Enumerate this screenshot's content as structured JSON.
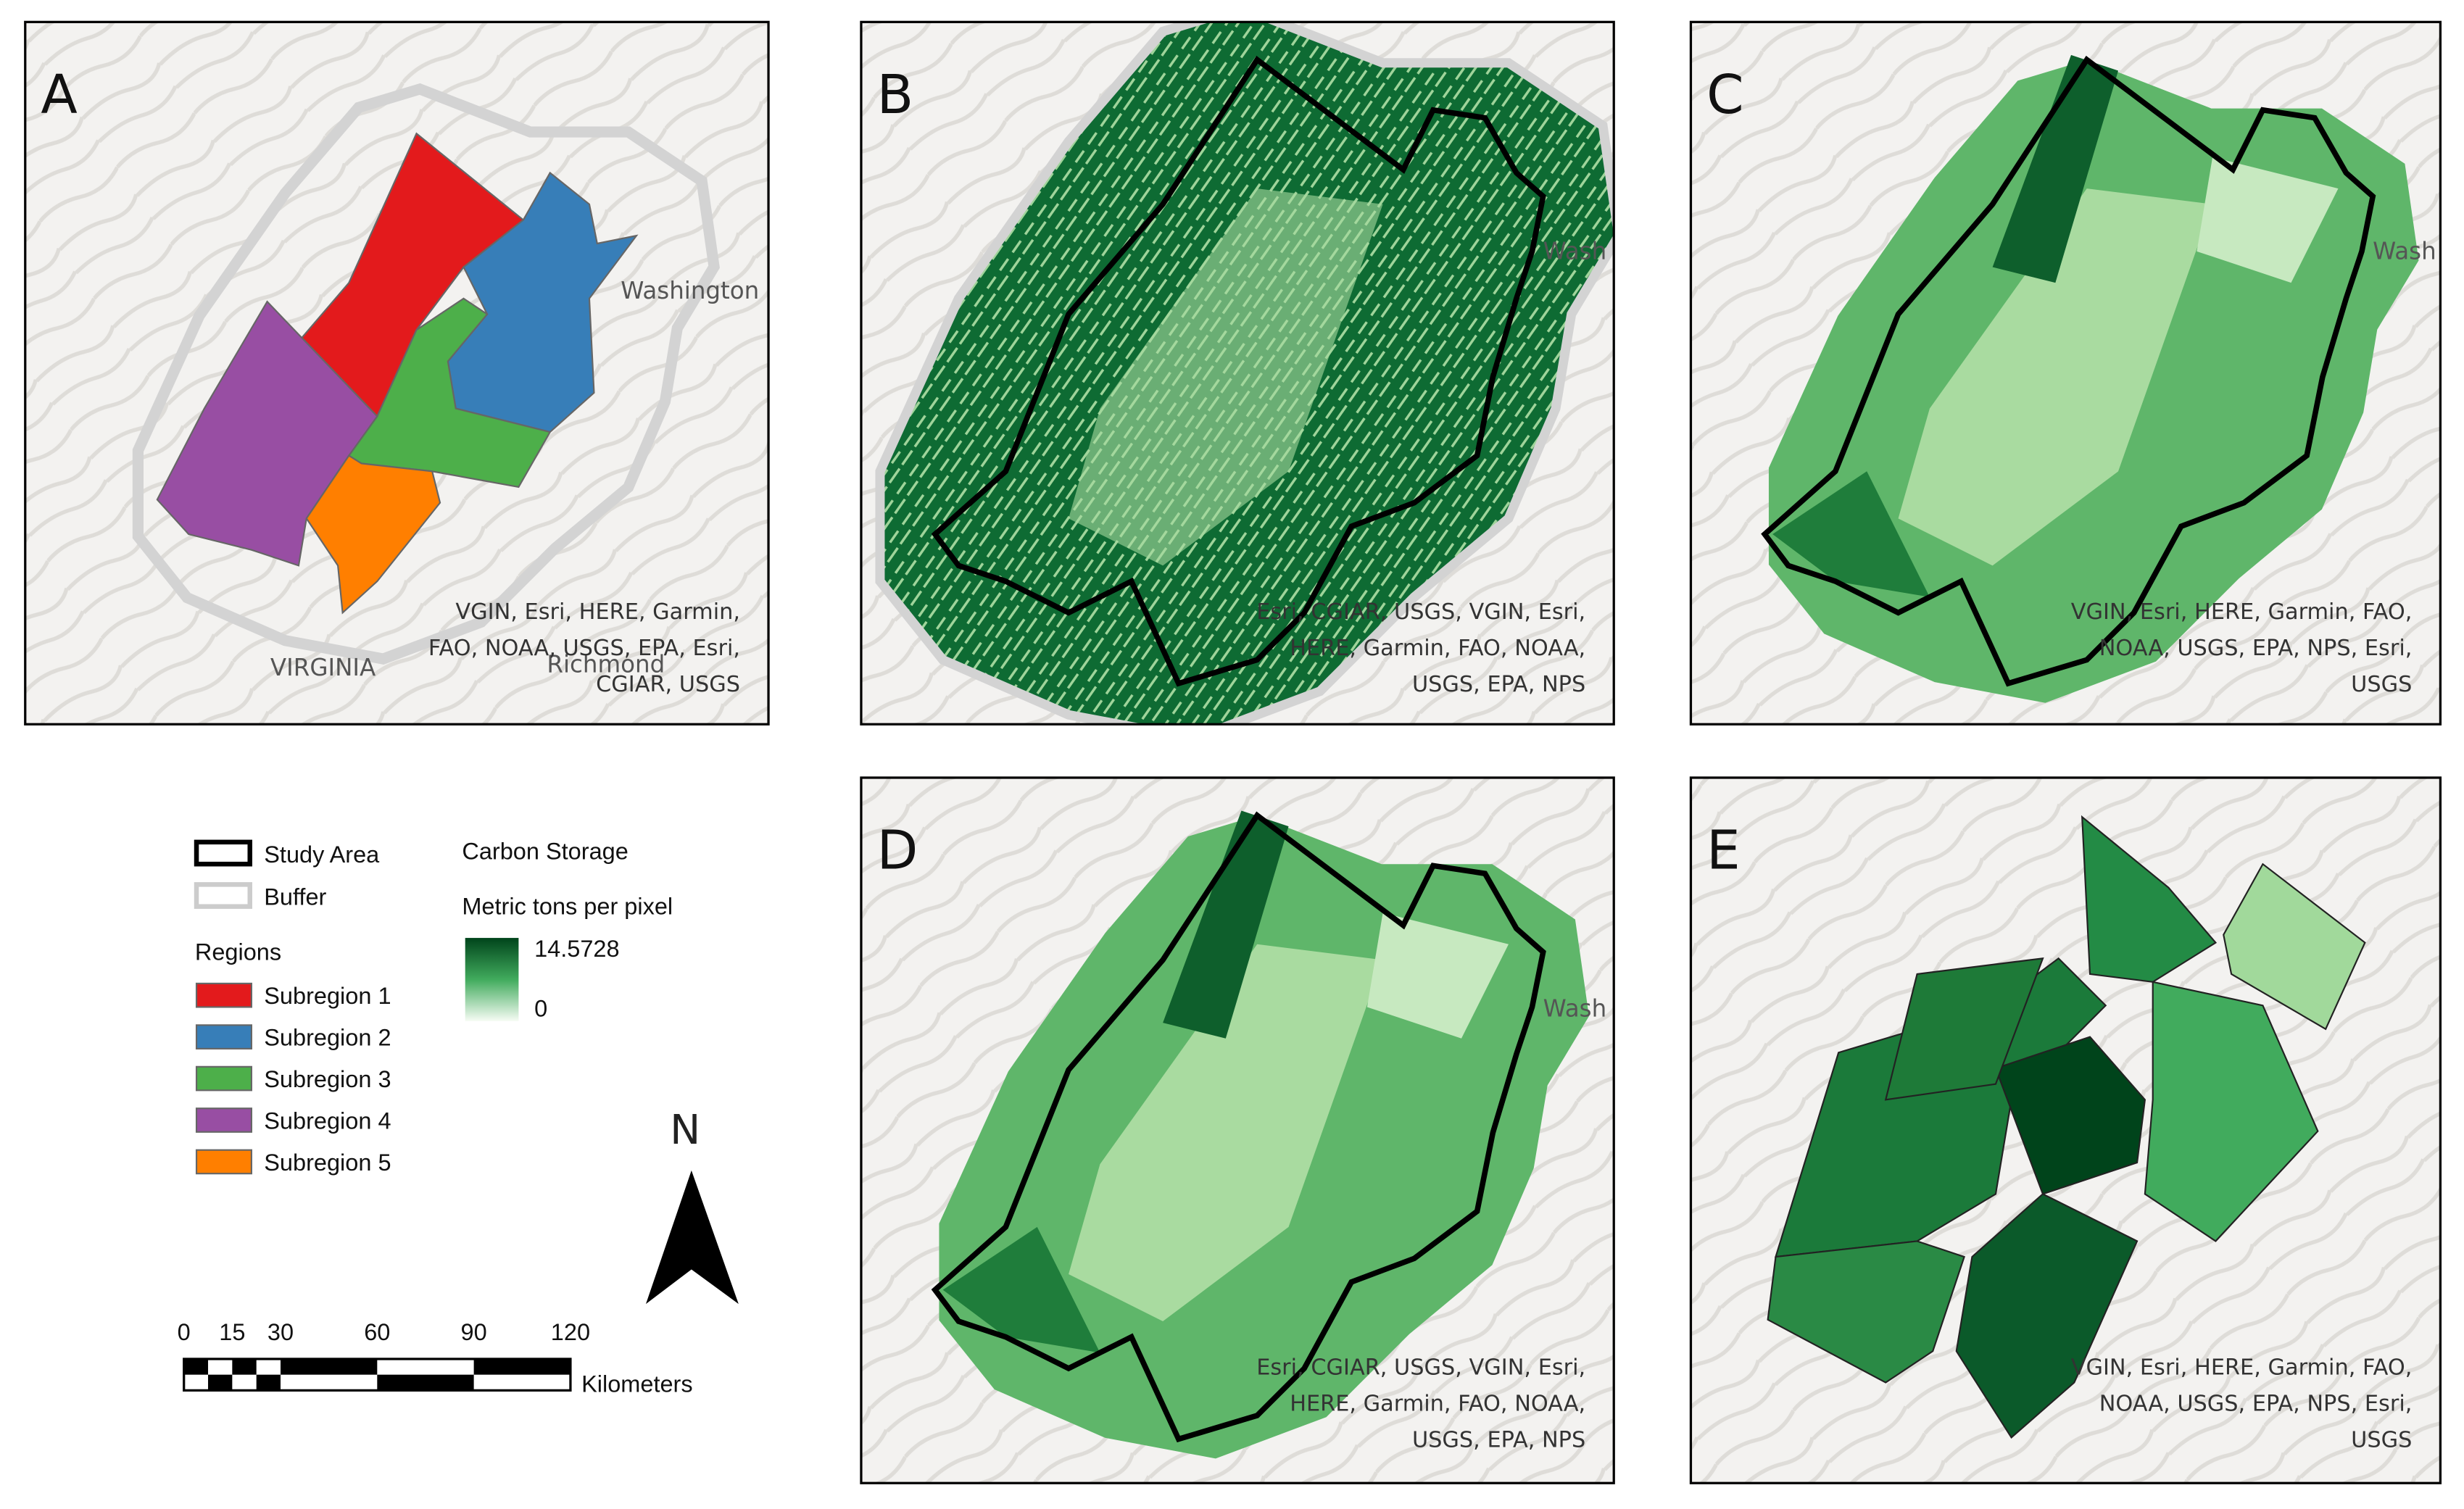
{
  "panels": [
    {
      "label": "A",
      "attribution": [
        "VGIN, Esri, HERE, Garmin,",
        "FAO, NOAA, USGS, EPA, Esri,",
        "CGIAR, USGS"
      ],
      "places": [
        "Washington",
        "VIRGINIA",
        "Richmond"
      ]
    },
    {
      "label": "B",
      "attribution": [
        "Esri, CGIAR, USGS, VGIN, Esri,",
        "HERE, Garmin, FAO, NOAA,",
        "USGS, EPA, NPS"
      ],
      "places": [
        "Wash"
      ]
    },
    {
      "label": "C",
      "attribution": [
        "VGIN, Esri, HERE, Garmin, FAO,",
        "NOAA, USGS, EPA, NPS, Esri,",
        "USGS"
      ],
      "places": [
        "Wash"
      ]
    },
    {
      "label": "D",
      "attribution": [
        "Esri, CGIAR, USGS, VGIN, Esri,",
        "HERE, Garmin, FAO, NOAA,",
        "USGS, EPA, NPS"
      ],
      "places": [
        "Wash"
      ]
    },
    {
      "label": "E",
      "attribution": [
        "VGIN, Esri, HERE, Garmin, FAO,",
        "NOAA, USGS, EPA, NPS, Esri,",
        "USGS"
      ],
      "places": []
    }
  ],
  "legend": {
    "study_area": "Study Area",
    "buffer": "Buffer",
    "regions_title": "Regions",
    "regions": [
      {
        "name": "Subregion 1",
        "color": "#e31a1c"
      },
      {
        "name": "Subregion 2",
        "color": "#377eb8"
      },
      {
        "name": "Subregion 3",
        "color": "#4daf4a"
      },
      {
        "name": "Subregion 4",
        "color": "#984ea3"
      },
      {
        "name": "Subregion 5",
        "color": "#ff7f00"
      }
    ],
    "carbon_title": "Carbon Storage",
    "carbon_unit": "Metric tons per pixel",
    "carbon_max": "14.5728",
    "carbon_min": "0"
  },
  "north": "N",
  "scale": {
    "ticks": [
      0,
      15,
      30,
      60,
      90,
      120
    ],
    "unit": "Kilometers"
  }
}
